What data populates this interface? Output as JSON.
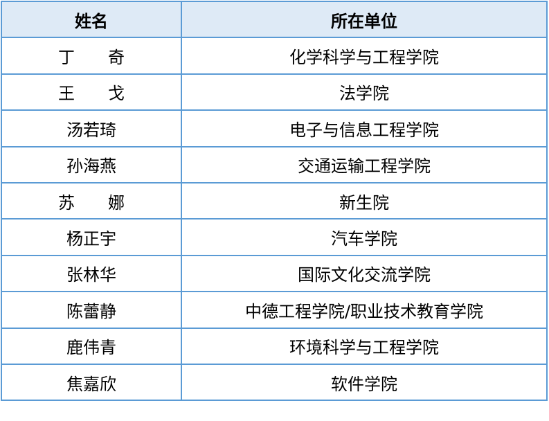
{
  "header": {
    "name": "姓名",
    "unit": "所在单位"
  },
  "rows": [
    {
      "name": "丁　　奇",
      "unit": "化学科学与工程学院"
    },
    {
      "name": "王　　戈",
      "unit": "法学院"
    },
    {
      "name": "汤若琦",
      "unit": "电子与信息工程学院"
    },
    {
      "name": "孙海燕",
      "unit": "交通运输工程学院"
    },
    {
      "name": "苏　　娜",
      "unit": "新生院"
    },
    {
      "name": "杨正宇",
      "unit": "汽车学院"
    },
    {
      "name": "张林华",
      "unit": "国际文化交流学院"
    },
    {
      "name": "陈蕾静",
      "unit": "中德工程学院/职业技术教育学院"
    },
    {
      "name": "鹿伟青",
      "unit": "环境科学与工程学院"
    },
    {
      "name": "焦嘉欣",
      "unit": "软件学院"
    }
  ]
}
